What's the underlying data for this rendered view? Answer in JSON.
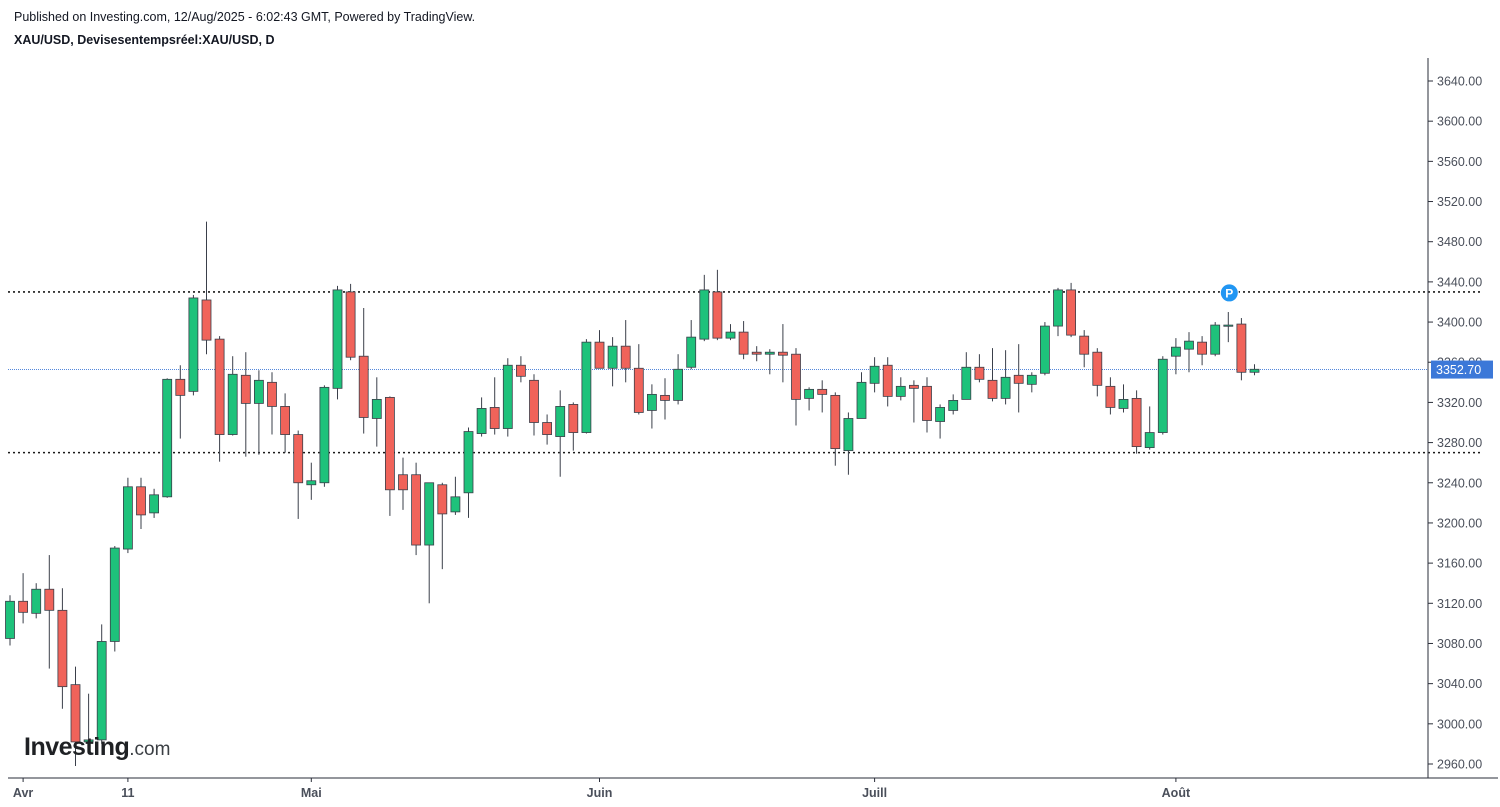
{
  "header": {
    "published": "Published on Investing.com, 12/Aug/2025 - 6:02:43 GMT, Powered by TradingView.",
    "symbol": "XAU/USD, Devisesentempsréel:XAU/USD, D"
  },
  "logo": {
    "brand": "Investing",
    "suffix": ".com"
  },
  "colors": {
    "up": "#1ec27b",
    "down": "#f0635a",
    "wick": "#3a3f4a",
    "current": "#3c78d8",
    "marker": "#2196f3"
  },
  "chart_data": {
    "type": "candlestick",
    "title": "",
    "xlabel": "",
    "ylabel": "",
    "ylim": [
      2940,
      3660
    ],
    "y_ticks": [
      "2960.00",
      "3000.00",
      "3040.00",
      "3080.00",
      "3120.00",
      "3160.00",
      "3200.00",
      "3240.00",
      "3280.00",
      "3320.00",
      "3360.00",
      "3400.00",
      "3440.00",
      "3480.00",
      "3520.00",
      "3560.00",
      "3600.00",
      "3640.00"
    ],
    "x_ticks": [
      {
        "label": "Avr",
        "date": "2025-04-01"
      },
      {
        "label": "11",
        "date": "2025-04-11"
      },
      {
        "label": "Mai",
        "date": "2025-05-01"
      },
      {
        "label": "Juin",
        "date": "2025-06-02"
      },
      {
        "label": "Juill",
        "date": "2025-07-01"
      },
      {
        "label": "Août",
        "date": "2025-08-01"
      }
    ],
    "current_price": "3352.70",
    "horizontal_lines": [
      3430,
      3270
    ],
    "marker": {
      "label": "P",
      "date": "2025-08-07",
      "value": 3429
    },
    "grid": false,
    "candles": [
      {
        "d": "2025-03-31",
        "o": 3085,
        "h": 3128,
        "l": 3078,
        "c": 3122
      },
      {
        "d": "2025-04-01",
        "o": 3122,
        "h": 3150,
        "l": 3100,
        "c": 3111
      },
      {
        "d": "2025-04-02",
        "o": 3110,
        "h": 3140,
        "l": 3105,
        "c": 3134
      },
      {
        "d": "2025-04-03",
        "o": 3134,
        "h": 3168,
        "l": 3055,
        "c": 3113
      },
      {
        "d": "2025-04-04",
        "o": 3113,
        "h": 3135,
        "l": 3015,
        "c": 3037
      },
      {
        "d": "2025-04-07",
        "o": 3039,
        "h": 3057,
        "l": 2958,
        "c": 2982
      },
      {
        "d": "2025-04-08",
        "o": 2982,
        "h": 3030,
        "l": 2970,
        "c": 2984
      },
      {
        "d": "2025-04-09",
        "o": 2984,
        "h": 3099,
        "l": 2980,
        "c": 3082
      },
      {
        "d": "2025-04-10",
        "o": 3082,
        "h": 3177,
        "l": 3072,
        "c": 3175
      },
      {
        "d": "2025-04-11",
        "o": 3174,
        "h": 3245,
        "l": 3170,
        "c": 3236
      },
      {
        "d": "2025-04-14",
        "o": 3236,
        "h": 3245,
        "l": 3194,
        "c": 3208
      },
      {
        "d": "2025-04-15",
        "o": 3210,
        "h": 3234,
        "l": 3205,
        "c": 3228
      },
      {
        "d": "2025-04-16",
        "o": 3226,
        "h": 3344,
        "l": 3225,
        "c": 3343
      },
      {
        "d": "2025-04-17",
        "o": 3343,
        "h": 3357,
        "l": 3284,
        "c": 3327
      },
      {
        "d": "2025-04-18",
        "o": 3331,
        "h": 3427,
        "l": 3327,
        "c": 3424
      },
      {
        "d": "2025-04-21",
        "o": 3422,
        "h": 3500,
        "l": 3368,
        "c": 3382
      },
      {
        "d": "2025-04-22",
        "o": 3383,
        "h": 3386,
        "l": 3261,
        "c": 3288
      },
      {
        "d": "2025-04-23",
        "o": 3288,
        "h": 3366,
        "l": 3287,
        "c": 3348
      },
      {
        "d": "2025-04-24",
        "o": 3347,
        "h": 3370,
        "l": 3266,
        "c": 3319
      },
      {
        "d": "2025-04-25",
        "o": 3319,
        "h": 3352,
        "l": 3268,
        "c": 3342
      },
      {
        "d": "2025-04-28",
        "o": 3340,
        "h": 3350,
        "l": 3288,
        "c": 3316
      },
      {
        "d": "2025-04-29",
        "o": 3316,
        "h": 3329,
        "l": 3270,
        "c": 3288
      },
      {
        "d": "2025-04-30",
        "o": 3288,
        "h": 3292,
        "l": 3204,
        "c": 3240
      },
      {
        "d": "2025-05-01",
        "o": 3238,
        "h": 3260,
        "l": 3223,
        "c": 3242
      },
      {
        "d": "2025-05-02",
        "o": 3240,
        "h": 3337,
        "l": 3236,
        "c": 3335
      },
      {
        "d": "2025-05-05",
        "o": 3334,
        "h": 3436,
        "l": 3323,
        "c": 3432
      },
      {
        "d": "2025-05-06",
        "o": 3430,
        "h": 3438,
        "l": 3362,
        "c": 3365
      },
      {
        "d": "2025-05-07",
        "o": 3366,
        "h": 3414,
        "l": 3289,
        "c": 3305
      },
      {
        "d": "2025-05-08",
        "o": 3304,
        "h": 3345,
        "l": 3276,
        "c": 3323
      },
      {
        "d": "2025-05-09",
        "o": 3325,
        "h": 3326,
        "l": 3207,
        "c": 3233
      },
      {
        "d": "2025-05-12",
        "o": 3248,
        "h": 3265,
        "l": 3213,
        "c": 3233
      },
      {
        "d": "2025-05-13",
        "o": 3248,
        "h": 3260,
        "l": 3168,
        "c": 3178
      },
      {
        "d": "2025-05-14",
        "o": 3178,
        "h": 3240,
        "l": 3120,
        "c": 3240
      },
      {
        "d": "2025-05-15",
        "o": 3238,
        "h": 3240,
        "l": 3154,
        "c": 3209
      },
      {
        "d": "2025-05-16",
        "o": 3211,
        "h": 3246,
        "l": 3208,
        "c": 3226
      },
      {
        "d": "2025-05-19",
        "o": 3230,
        "h": 3295,
        "l": 3205,
        "c": 3291
      },
      {
        "d": "2025-05-20",
        "o": 3289,
        "h": 3325,
        "l": 3286,
        "c": 3314
      },
      {
        "d": "2025-05-21",
        "o": 3315,
        "h": 3345,
        "l": 3288,
        "c": 3294
      },
      {
        "d": "2025-05-22",
        "o": 3294,
        "h": 3364,
        "l": 3286,
        "c": 3357
      },
      {
        "d": "2025-05-23",
        "o": 3357,
        "h": 3366,
        "l": 3340,
        "c": 3346
      },
      {
        "d": "2025-05-26",
        "o": 3342,
        "h": 3348,
        "l": 3287,
        "c": 3300
      },
      {
        "d": "2025-05-27",
        "o": 3300,
        "h": 3308,
        "l": 3278,
        "c": 3288
      },
      {
        "d": "2025-05-28",
        "o": 3286,
        "h": 3332,
        "l": 3246,
        "c": 3316
      },
      {
        "d": "2025-05-29",
        "o": 3318,
        "h": 3320,
        "l": 3272,
        "c": 3290
      },
      {
        "d": "2025-05-30",
        "o": 3290,
        "h": 3383,
        "l": 3289,
        "c": 3380
      },
      {
        "d": "2025-06-02",
        "o": 3380,
        "h": 3392,
        "l": 3354,
        "c": 3354
      },
      {
        "d": "2025-06-03",
        "o": 3354,
        "h": 3385,
        "l": 3336,
        "c": 3376
      },
      {
        "d": "2025-06-04",
        "o": 3376,
        "h": 3402,
        "l": 3340,
        "c": 3354
      },
      {
        "d": "2025-06-05",
        "o": 3354,
        "h": 3378,
        "l": 3308,
        "c": 3310
      },
      {
        "d": "2025-06-06",
        "o": 3312,
        "h": 3338,
        "l": 3294,
        "c": 3328
      },
      {
        "d": "2025-06-09",
        "o": 3327,
        "h": 3344,
        "l": 3303,
        "c": 3322
      },
      {
        "d": "2025-06-10",
        "o": 3322,
        "h": 3368,
        "l": 3318,
        "c": 3353
      },
      {
        "d": "2025-06-11",
        "o": 3355,
        "h": 3402,
        "l": 3353,
        "c": 3385
      },
      {
        "d": "2025-06-12",
        "o": 3383,
        "h": 3447,
        "l": 3381,
        "c": 3432
      },
      {
        "d": "2025-06-13",
        "o": 3430,
        "h": 3452,
        "l": 3382,
        "c": 3384
      },
      {
        "d": "2025-06-16",
        "o": 3384,
        "h": 3398,
        "l": 3382,
        "c": 3390
      },
      {
        "d": "2025-06-17",
        "o": 3390,
        "h": 3401,
        "l": 3363,
        "c": 3368
      },
      {
        "d": "2025-06-18",
        "o": 3370,
        "h": 3376,
        "l": 3361,
        "c": 3368
      },
      {
        "d": "2025-06-19",
        "o": 3368,
        "h": 3373,
        "l": 3348,
        "c": 3370
      },
      {
        "d": "2025-06-20",
        "o": 3370,
        "h": 3398,
        "l": 3340,
        "c": 3367
      },
      {
        "d": "2025-06-23",
        "o": 3368,
        "h": 3374,
        "l": 3297,
        "c": 3323
      },
      {
        "d": "2025-06-24",
        "o": 3324,
        "h": 3335,
        "l": 3312,
        "c": 3333
      },
      {
        "d": "2025-06-25",
        "o": 3333,
        "h": 3342,
        "l": 3310,
        "c": 3328
      },
      {
        "d": "2025-06-26",
        "o": 3327,
        "h": 3330,
        "l": 3257,
        "c": 3274
      },
      {
        "d": "2025-06-27",
        "o": 3272,
        "h": 3310,
        "l": 3248,
        "c": 3304
      },
      {
        "d": "2025-06-30",
        "o": 3304,
        "h": 3350,
        "l": 3304,
        "c": 3340
      },
      {
        "d": "2025-07-01",
        "o": 3339,
        "h": 3365,
        "l": 3330,
        "c": 3356
      },
      {
        "d": "2025-07-02",
        "o": 3357,
        "h": 3365,
        "l": 3316,
        "c": 3326
      },
      {
        "d": "2025-07-03",
        "o": 3326,
        "h": 3345,
        "l": 3322,
        "c": 3336
      },
      {
        "d": "2025-07-04",
        "o": 3337,
        "h": 3342,
        "l": 3300,
        "c": 3334
      },
      {
        "d": "2025-07-07",
        "o": 3336,
        "h": 3345,
        "l": 3290,
        "c": 3302
      },
      {
        "d": "2025-07-08",
        "o": 3301,
        "h": 3318,
        "l": 3284,
        "c": 3315
      },
      {
        "d": "2025-07-09",
        "o": 3312,
        "h": 3328,
        "l": 3308,
        "c": 3322
      },
      {
        "d": "2025-07-10",
        "o": 3323,
        "h": 3370,
        "l": 3323,
        "c": 3355
      },
      {
        "d": "2025-07-11",
        "o": 3355,
        "h": 3368,
        "l": 3340,
        "c": 3343
      },
      {
        "d": "2025-07-14",
        "o": 3342,
        "h": 3374,
        "l": 3321,
        "c": 3324
      },
      {
        "d": "2025-07-15",
        "o": 3324,
        "h": 3372,
        "l": 3318,
        "c": 3345
      },
      {
        "d": "2025-07-16",
        "o": 3347,
        "h": 3378,
        "l": 3310,
        "c": 3339
      },
      {
        "d": "2025-07-17",
        "o": 3338,
        "h": 3350,
        "l": 3330,
        "c": 3347
      },
      {
        "d": "2025-07-18",
        "o": 3349,
        "h": 3400,
        "l": 3347,
        "c": 3396
      },
      {
        "d": "2025-07-21",
        "o": 3396,
        "h": 3434,
        "l": 3386,
        "c": 3432
      },
      {
        "d": "2025-07-22",
        "o": 3432,
        "h": 3439,
        "l": 3385,
        "c": 3387
      },
      {
        "d": "2025-07-23",
        "o": 3386,
        "h": 3392,
        "l": 3355,
        "c": 3368
      },
      {
        "d": "2025-07-24",
        "o": 3370,
        "h": 3374,
        "l": 3326,
        "c": 3337
      },
      {
        "d": "2025-07-25",
        "o": 3336,
        "h": 3345,
        "l": 3308,
        "c": 3315
      },
      {
        "d": "2025-07-28",
        "o": 3314,
        "h": 3338,
        "l": 3310,
        "c": 3323
      },
      {
        "d": "2025-07-29",
        "o": 3324,
        "h": 3332,
        "l": 3269,
        "c": 3276
      },
      {
        "d": "2025-07-30",
        "o": 3275,
        "h": 3316,
        "l": 3273,
        "c": 3290
      },
      {
        "d": "2025-07-31",
        "o": 3290,
        "h": 3366,
        "l": 3288,
        "c": 3363
      },
      {
        "d": "2025-08-01",
        "o": 3366,
        "h": 3384,
        "l": 3348,
        "c": 3375
      },
      {
        "d": "2025-08-04",
        "o": 3373,
        "h": 3390,
        "l": 3350,
        "c": 3381
      },
      {
        "d": "2025-08-05",
        "o": 3380,
        "h": 3386,
        "l": 3357,
        "c": 3368
      },
      {
        "d": "2025-08-06",
        "o": 3368,
        "h": 3400,
        "l": 3366,
        "c": 3397
      },
      {
        "d": "2025-08-07",
        "o": 3397,
        "h": 3410,
        "l": 3380,
        "c": 3397
      },
      {
        "d": "2025-08-08",
        "o": 3398,
        "h": 3404,
        "l": 3342,
        "c": 3350
      },
      {
        "d": "2025-08-11",
        "o": 3350,
        "h": 3358,
        "l": 3347,
        "c": 3353
      }
    ]
  }
}
